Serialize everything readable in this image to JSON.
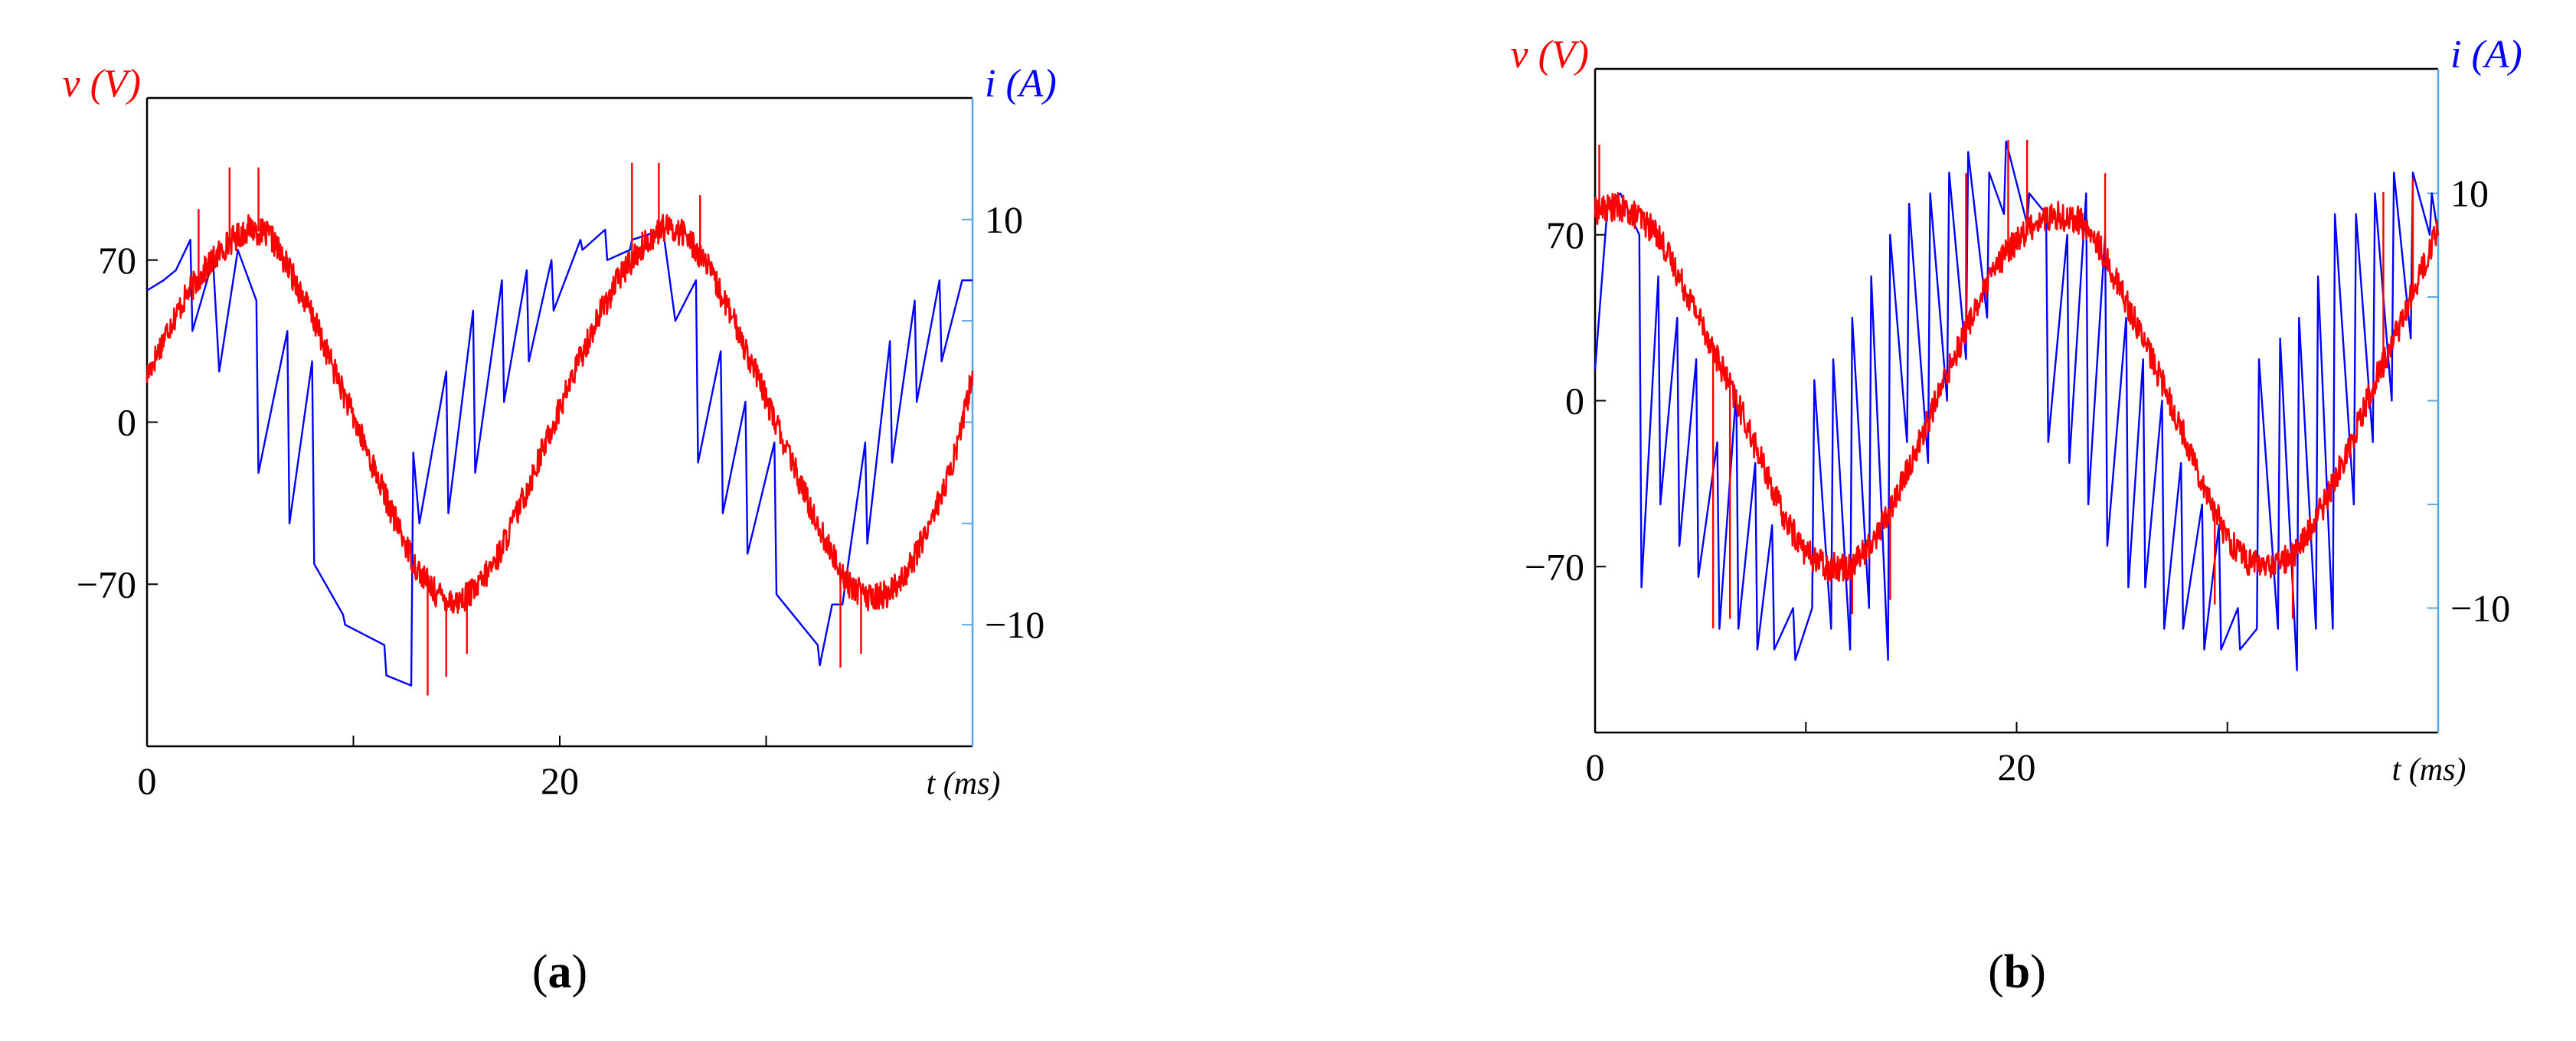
{
  "chart_data": [
    {
      "type": "line",
      "panel_label": "(a)",
      "x_axis": {
        "label": "t (ms)",
        "range": [
          0,
          40
        ],
        "tick_labels": [
          "0",
          "20"
        ]
      },
      "y_left": {
        "label": "v (V)",
        "range": [
          -140,
          140
        ],
        "tick_labels": [
          "70",
          "0",
          "−70"
        ],
        "color": "#ff0000"
      },
      "y_right": {
        "label": "i (A)",
        "range": [
          -16,
          16
        ],
        "tick_labels": [
          "10",
          "−10"
        ],
        "color": "#0000ff"
      },
      "grid": false,
      "series": [
        {
          "axis": "left",
          "color": "#ff0000",
          "x": [
            0,
            1,
            2,
            3,
            4,
            5,
            6,
            7,
            8,
            9,
            10,
            11,
            12,
            13,
            14,
            15,
            16,
            17,
            18,
            19,
            20,
            21,
            22,
            23,
            24,
            25,
            26,
            27,
            28,
            29,
            30,
            31,
            32,
            33,
            34,
            35,
            36,
            37,
            38,
            39,
            40
          ],
          "values": [
            20,
            40,
            56,
            68,
            78,
            84,
            80,
            64,
            46,
            24,
            2,
            -20,
            -42,
            -62,
            -74,
            -78,
            -72,
            -58,
            -38,
            -16,
            6,
            28,
            48,
            64,
            76,
            84,
            82,
            70,
            52,
            32,
            10,
            -12,
            -34,
            -54,
            -70,
            -76,
            -74,
            -62,
            -42,
            -20,
            20
          ],
          "spikes": [
            {
              "x": 2.5,
              "value": 92
            },
            {
              "x": 4.0,
              "value": 110
            },
            {
              "x": 5.4,
              "value": 110
            },
            {
              "x": 13.6,
              "value": -118
            },
            {
              "x": 14.5,
              "value": -110
            },
            {
              "x": 15.5,
              "value": -100
            },
            {
              "x": 23.5,
              "value": 112
            },
            {
              "x": 24.8,
              "value": 112
            },
            {
              "x": 26.8,
              "value": 98
            },
            {
              "x": 33.6,
              "value": -106
            },
            {
              "x": 34.6,
              "value": -100
            }
          ]
        },
        {
          "axis": "right",
          "color": "#0000ff",
          "x": [
            0,
            0.8,
            1.4,
            2.1,
            2.2,
            3.2,
            3.5,
            4.4,
            5.3,
            5.4,
            6.8,
            6.9,
            8.0,
            8.1,
            9.5,
            9.6,
            11.5,
            11.6,
            12.8,
            12.9,
            13.2,
            14.5,
            14.6,
            15.8,
            15.9,
            17.2,
            17.3,
            18.4,
            18.5,
            19.6,
            19.7,
            21.0,
            21.1,
            22.2,
            22.3,
            23.4,
            23.5,
            25.0,
            25.6,
            26.6,
            26.7,
            27.8,
            27.9,
            29.0,
            29.1,
            30.4,
            30.5,
            32.5,
            32.6,
            33.2,
            33.7,
            34.8,
            34.9,
            36.0,
            36.1,
            37.2,
            37.3,
            38.4,
            38.5,
            39.5,
            40
          ],
          "values": [
            6.5,
            7,
            7.5,
            9,
            4.5,
            8,
            2.5,
            8.5,
            6,
            -2.5,
            4.5,
            -5,
            3,
            -7,
            -9.5,
            -10,
            -11,
            -12.5,
            -13,
            -1.5,
            -5,
            2.5,
            -4.5,
            5.5,
            -2.5,
            7,
            1,
            7.5,
            3,
            8,
            5.5,
            9,
            8.5,
            9.5,
            8,
            8.5,
            9,
            9.5,
            5,
            7,
            -2,
            3.5,
            -4.5,
            1,
            -6.5,
            -1,
            -8.5,
            -11,
            -12,
            -9,
            -9,
            -1,
            -6,
            4,
            -2,
            6,
            1,
            7,
            3,
            7,
            7
          ]
        }
      ]
    },
    {
      "type": "line",
      "panel_label": "(b)",
      "x_axis": {
        "label": "t (ms)",
        "range": [
          0,
          40
        ],
        "tick_labels": [
          "0",
          "20"
        ]
      },
      "y_left": {
        "label": "v (V)",
        "range": [
          -140,
          140
        ],
        "tick_labels": [
          "70",
          "0",
          "−70"
        ],
        "color": "#ff0000"
      },
      "y_right": {
        "label": "i (A)",
        "range": [
          -16,
          16
        ],
        "tick_labels": [
          "10",
          "−10"
        ],
        "color": "#0000ff"
      },
      "grid": false,
      "series": [
        {
          "axis": "left",
          "color": "#ff0000",
          "x": [
            0,
            1,
            2,
            3,
            4,
            5,
            6,
            7,
            8,
            9,
            10,
            11,
            12,
            13,
            14,
            15,
            16,
            17,
            18,
            19,
            20,
            21,
            22,
            23,
            24,
            25,
            26,
            27,
            28,
            29,
            30,
            31,
            32,
            33,
            34,
            35,
            36,
            37,
            38,
            39,
            40
          ],
          "values": [
            80,
            82,
            78,
            70,
            52,
            34,
            14,
            -6,
            -28,
            -50,
            -64,
            -70,
            -70,
            -62,
            -46,
            -26,
            -4,
            18,
            38,
            56,
            68,
            76,
            78,
            76,
            64,
            46,
            26,
            6,
            -16,
            -38,
            -58,
            -68,
            -70,
            -66,
            -54,
            -36,
            -14,
            8,
            28,
            50,
            72
          ],
          "spikes": [
            {
              "x": 0.2,
              "value": 108
            },
            {
              "x": 5.6,
              "value": -96
            },
            {
              "x": 6.4,
              "value": -92
            },
            {
              "x": 12.2,
              "value": -90
            },
            {
              "x": 14.0,
              "value": -84
            },
            {
              "x": 17.6,
              "value": 96
            },
            {
              "x": 19.6,
              "value": 110
            },
            {
              "x": 20.5,
              "value": 110
            },
            {
              "x": 24.2,
              "value": 96
            },
            {
              "x": 29.4,
              "value": -86
            },
            {
              "x": 33.1,
              "value": -92
            },
            {
              "x": 37.4,
              "value": 88
            },
            {
              "x": 38.8,
              "value": 94
            }
          ]
        },
        {
          "axis": "right",
          "color": "#0000ff",
          "x": [
            0,
            0.6,
            1.2,
            2.1,
            2.2,
            3.0,
            3.1,
            3.9,
            4.0,
            4.8,
            4.9,
            5.8,
            5.9,
            6.7,
            6.8,
            7.6,
            7.7,
            8.4,
            8.5,
            9.4,
            9.5,
            10.3,
            10.4,
            11.2,
            11.3,
            12.1,
            12.2,
            13.0,
            13.1,
            13.9,
            14.0,
            14.8,
            14.9,
            15.8,
            15.9,
            16.7,
            16.8,
            17.6,
            17.7,
            18.6,
            18.7,
            19.4,
            19.5,
            20.5,
            20.6,
            21.4,
            21.5,
            22.4,
            22.5,
            23.3,
            23.4,
            24.2,
            24.3,
            25.2,
            25.3,
            26.0,
            26.1,
            26.9,
            27.0,
            27.8,
            27.9,
            28.8,
            28.9,
            29.6,
            29.7,
            30.5,
            30.6,
            31.4,
            31.5,
            32.4,
            32.5,
            33.3,
            33.4,
            34.2,
            34.3,
            35.0,
            35.1,
            36.0,
            36.1,
            36.9,
            37.0,
            37.8,
            37.9,
            38.7,
            38.8,
            39.6,
            39.7,
            40
          ],
          "values": [
            1.5,
            9.5,
            10,
            8,
            -9,
            6,
            -5,
            4,
            -7,
            2,
            -8.5,
            -2,
            -11,
            0.5,
            -11,
            -3,
            -12,
            -6,
            -12,
            -10,
            -12.5,
            -10,
            1,
            -11,
            2,
            -12,
            4,
            -10,
            6,
            -12.5,
            8,
            -2,
            9.5,
            -3,
            10,
            0,
            11,
            2,
            12,
            4,
            11,
            9,
            12.5,
            8.5,
            10,
            9,
            -2,
            8,
            -3,
            10,
            -5,
            8,
            -7,
            4,
            -9,
            2,
            -9,
            0,
            -11,
            -3,
            -11,
            -5,
            -12,
            -6,
            -12,
            -10,
            -12,
            -11,
            2,
            -11,
            3,
            -13,
            4,
            -11,
            6,
            -11,
            9,
            -5,
            9,
            -2,
            10,
            0,
            11,
            3,
            11,
            8,
            10,
            8
          ]
        }
      ]
    }
  ]
}
